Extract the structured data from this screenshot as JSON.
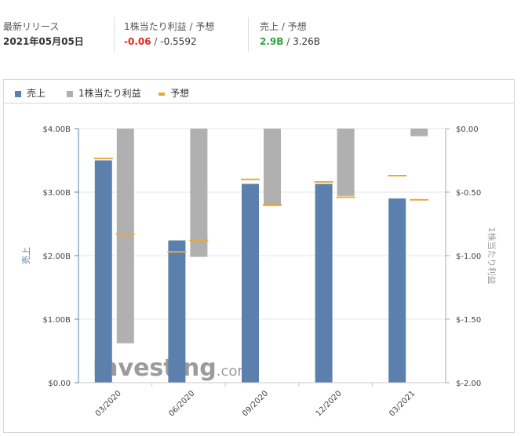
{
  "summary": {
    "latest_release": {
      "label": "最新リリース",
      "value": "2021年05月05日"
    },
    "eps": {
      "label": "1株当たり利益 / 予想",
      "actual": "-0.06",
      "separator": " / ",
      "forecast": "-0.5592"
    },
    "revenue": {
      "label": "売上 / 予想",
      "actual": "2.9B",
      "separator": " / ",
      "forecast": "3.26B"
    }
  },
  "legend": {
    "revenue": "売上",
    "eps": "1株当たり利益",
    "forecast": "予想"
  },
  "colors": {
    "revenue": "#5b80ad",
    "eps": "#b0b0b0",
    "forecast": "#e8a93a",
    "negative": "#e0281f",
    "positive": "#2aa33a"
  },
  "watermark": {
    "brand": "Investing",
    "suffix": ".com"
  },
  "chart_data": {
    "type": "bar",
    "categories": [
      "03/2020",
      "06/2020",
      "09/2020",
      "12/2020",
      "03/2021"
    ],
    "left_axis": {
      "title": "売上",
      "range": [
        0,
        4.0
      ],
      "ticks": [
        0,
        1.0,
        2.0,
        3.0,
        4.0
      ],
      "tick_labels": [
        "$0.00",
        "$1.00B",
        "$2.00B",
        "$3.00B",
        "$4.00B"
      ]
    },
    "right_axis": {
      "title": "1株当たり利益",
      "range": [
        -2.0,
        0
      ],
      "ticks": [
        0,
        -0.5,
        -1.0,
        -1.5,
        -2.0
      ],
      "tick_labels": [
        "$0.00",
        "$-0.50",
        "$-1.00",
        "$-1.50",
        "$-2.00"
      ]
    },
    "series": [
      {
        "name": "売上",
        "axis": "left",
        "values": [
          3.5,
          2.24,
          3.13,
          3.13,
          2.9
        ]
      },
      {
        "name": "1株当たり利益",
        "axis": "right",
        "values": [
          -1.69,
          -1.01,
          -0.61,
          -0.53,
          -0.06
        ]
      }
    ],
    "forecasts": {
      "revenue": [
        3.53,
        2.06,
        3.2,
        3.16,
        3.26
      ],
      "eps": [
        -0.83,
        -0.88,
        -0.6,
        -0.54,
        -0.56
      ]
    },
    "grid": true,
    "legend_position": "top-left"
  }
}
